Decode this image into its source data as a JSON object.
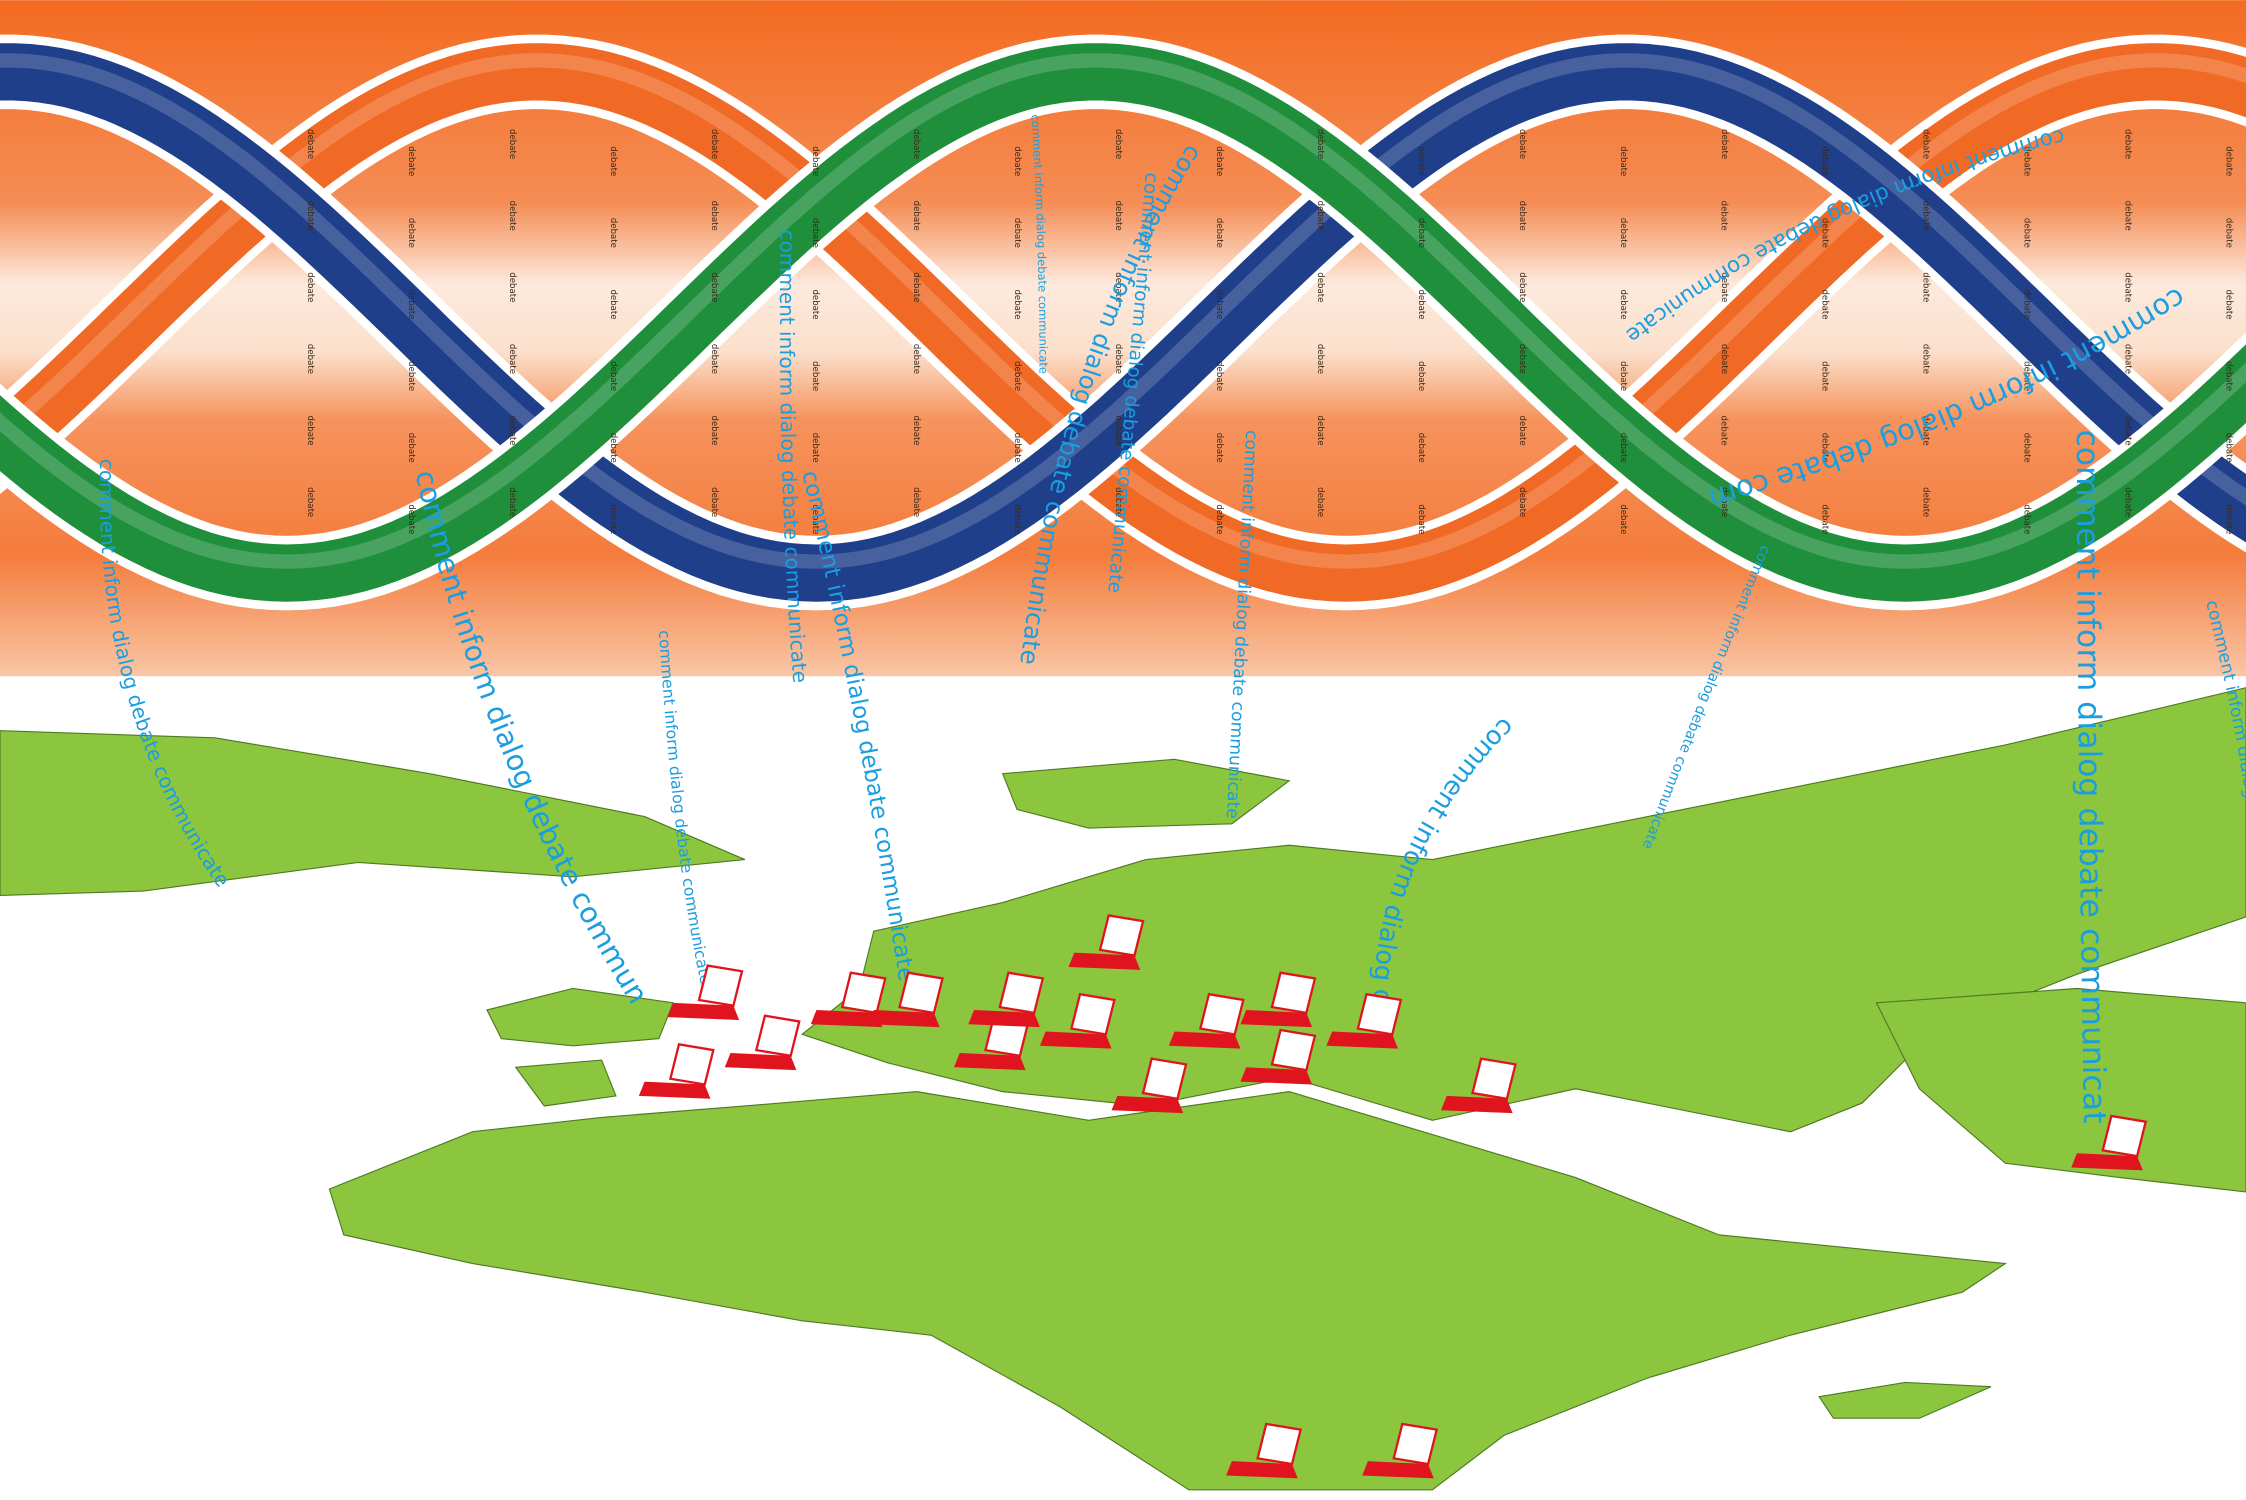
{
  "words": {
    "phrase": "comment inform dialog debate communicate",
    "label": "debate"
  }
}
